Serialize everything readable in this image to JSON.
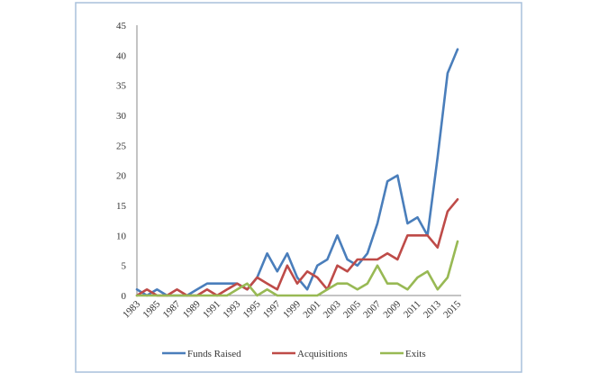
{
  "chart_data": {
    "type": "line",
    "title": "",
    "xlabel": "",
    "ylabel": "",
    "x": [
      1983,
      1984,
      1985,
      1986,
      1987,
      1988,
      1989,
      1990,
      1991,
      1992,
      1993,
      1994,
      1995,
      1996,
      1997,
      1998,
      1999,
      2000,
      2001,
      2002,
      2003,
      2004,
      2005,
      2006,
      2007,
      2008,
      2009,
      2010,
      2011,
      2012,
      2013,
      2014,
      2015
    ],
    "x_tick_labels": [
      "1983",
      "1985",
      "1987",
      "1989",
      "1991",
      "1993",
      "1995",
      "1997",
      "1999",
      "2001",
      "2003",
      "2005",
      "2007",
      "2009",
      "2011",
      "2013",
      "2015"
    ],
    "ylim": [
      0,
      45
    ],
    "y_ticks": [
      0,
      5,
      10,
      15,
      20,
      25,
      30,
      35,
      40,
      45
    ],
    "grid": false,
    "legend_position": "bottom",
    "series": [
      {
        "name": "Funds Raised",
        "color": "#4A7EBB",
        "values": [
          1,
          0,
          1,
          0,
          0,
          0,
          1,
          2,
          2,
          2,
          2,
          1,
          3,
          7,
          4,
          7,
          3,
          1,
          5,
          6,
          10,
          6,
          5,
          7,
          12,
          19,
          20,
          12,
          13,
          10,
          23,
          37,
          41
        ]
      },
      {
        "name": "Acquisitions",
        "color": "#BE4B48",
        "values": [
          0,
          1,
          0,
          0,
          1,
          0,
          0,
          1,
          0,
          1,
          2,
          1,
          3,
          2,
          1,
          5,
          2,
          4,
          3,
          1,
          5,
          4,
          6,
          6,
          6,
          7,
          6,
          10,
          10,
          10,
          8,
          14,
          16
        ]
      },
      {
        "name": "Exits",
        "color": "#98B954",
        "values": [
          0,
          0,
          0,
          0,
          0,
          0,
          0,
          0,
          0,
          0,
          1,
          2,
          0,
          1,
          0,
          0,
          0,
          0,
          0,
          1,
          2,
          2,
          1,
          2,
          5,
          2,
          2,
          1,
          3,
          4,
          1,
          3,
          9
        ]
      }
    ]
  }
}
